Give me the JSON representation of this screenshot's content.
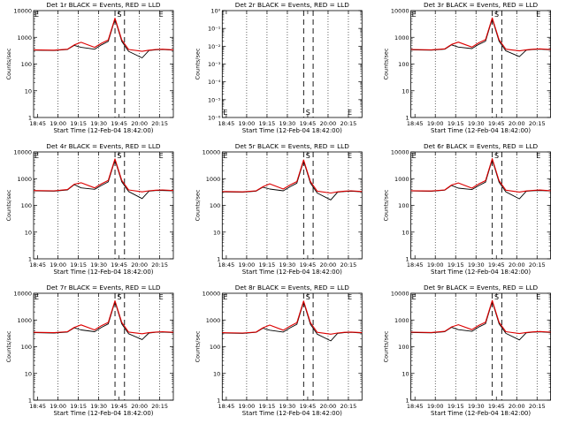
{
  "figure": {
    "title": ""
  },
  "chart_data": [
    {
      "type": "line",
      "title": "Det 1r BLACK = Events, RED = LLD",
      "xlabel": "Start Time (12-Feb-04 18:42:00)",
      "ylabel": "Counts/sec",
      "xticks": [
        "18:45",
        "19:00",
        "19:15",
        "19:30",
        "19:45",
        "20:00",
        "20:15"
      ],
      "yticks": [
        "1",
        "10",
        "100",
        "1000",
        "10000"
      ],
      "ylim": [
        1,
        10000
      ],
      "yscale": "log",
      "x_minutes_range": [
        0,
        103
      ],
      "x_minutes": [
        0,
        15,
        25,
        30,
        35,
        45,
        50,
        55,
        60,
        65,
        70,
        80,
        85,
        90,
        95,
        103
      ],
      "markers": {
        "dashed_lines_x_minutes": [
          60,
          67
        ],
        "dotted_lines_x_minutes": [
          18,
          33,
          48,
          78,
          93
        ],
        "glyphs": [
          "E",
          "S",
          "E"
        ]
      },
      "series": [
        {
          "name": "Events",
          "color": "#000000",
          "values": [
            330,
            320,
            350,
            500,
            420,
            360,
            520,
            700,
            4800,
            700,
            300,
            170,
            320,
            340,
            350,
            330
          ]
        },
        {
          "name": "LLD",
          "color": "#dd0000",
          "values": [
            340,
            330,
            360,
            520,
            650,
            420,
            600,
            800,
            5200,
            800,
            350,
            300,
            330,
            350,
            360,
            340
          ]
        }
      ]
    },
    {
      "type": "line",
      "title": "Det 2r BLACK = Events, RED = LLD",
      "xlabel": "Start Time (12-Feb-04 18:42:00)",
      "ylabel": "Counts/sec",
      "xticks": [
        "18:45",
        "19:00",
        "19:15",
        "19:30",
        "19:45",
        "20:00",
        "20:15"
      ],
      "yticks": [
        "10⁻⁶",
        "10⁻⁵",
        "10⁻⁴",
        "10⁻³",
        "10⁻²",
        "10⁻¹",
        "10⁰"
      ],
      "ylim": [
        1e-06,
        1
      ],
      "yscale": "log",
      "x_minutes_range": [
        0,
        103
      ],
      "x_minutes": [],
      "markers": {
        "dashed_lines_x_minutes": [
          60,
          67
        ],
        "dotted_lines_x_minutes": [
          18,
          33,
          48,
          78,
          93
        ],
        "glyphs": [
          "E",
          "S",
          "E"
        ]
      },
      "series": []
    },
    {
      "type": "line",
      "title": "Det 3r BLACK = Events, RED = LLD",
      "xlabel": "Start Time (12-Feb-04 18:42:00)",
      "ylabel": "Counts/sec",
      "xticks": [
        "18:45",
        "19:00",
        "19:15",
        "19:30",
        "19:45",
        "20:00",
        "20:15"
      ],
      "yticks": [
        "1",
        "10",
        "100",
        "1000",
        "10000"
      ],
      "ylim": [
        1,
        10000
      ],
      "yscale": "log",
      "x_minutes_range": [
        0,
        103
      ],
      "x_minutes": [
        0,
        15,
        25,
        30,
        35,
        45,
        50,
        55,
        60,
        65,
        70,
        80,
        85,
        90,
        95,
        103
      ],
      "markers": {
        "dashed_lines_x_minutes": [
          60,
          67
        ],
        "dotted_lines_x_minutes": [
          18,
          33,
          48,
          78,
          93
        ],
        "glyphs": [
          "E",
          "S",
          "E"
        ]
      },
      "series": [
        {
          "name": "Events",
          "color": "#000000",
          "values": [
            340,
            330,
            360,
            520,
            430,
            380,
            540,
            720,
            4900,
            720,
            310,
            190,
            330,
            350,
            360,
            340
          ]
        },
        {
          "name": "LLD",
          "color": "#dd0000",
          "values": [
            350,
            340,
            370,
            540,
            660,
            430,
            620,
            820,
            5300,
            820,
            360,
            310,
            340,
            360,
            370,
            350
          ]
        }
      ]
    },
    {
      "type": "line",
      "title": "Det 4r BLACK = Events, RED = LLD",
      "xlabel": "Start Time (12-Feb-04 18:42:00)",
      "ylabel": "Counts/sec",
      "xticks": [
        "18:45",
        "19:00",
        "19:15",
        "19:30",
        "19:45",
        "20:00",
        "20:15"
      ],
      "yticks": [
        "1",
        "10",
        "100",
        "1000",
        "10000"
      ],
      "ylim": [
        1,
        10000
      ],
      "yscale": "log",
      "x_minutes_range": [
        0,
        103
      ],
      "x_minutes": [
        0,
        15,
        25,
        30,
        35,
        45,
        50,
        55,
        60,
        65,
        70,
        80,
        85,
        90,
        95,
        103
      ],
      "markers": {
        "dashed_lines_x_minutes": [
          60,
          67
        ],
        "dotted_lines_x_minutes": [
          18,
          33,
          48,
          78,
          93
        ],
        "glyphs": [
          "E",
          "S",
          "E"
        ]
      },
      "series": [
        {
          "name": "Events",
          "color": "#000000",
          "values": [
            350,
            340,
            380,
            600,
            450,
            400,
            560,
            760,
            5000,
            760,
            330,
            180,
            340,
            360,
            360,
            350
          ]
        },
        {
          "name": "LLD",
          "color": "#dd0000",
          "values": [
            360,
            350,
            390,
            620,
            700,
            450,
            640,
            860,
            5500,
            860,
            380,
            320,
            350,
            370,
            380,
            360
          ]
        }
      ]
    },
    {
      "type": "line",
      "title": "Det 5r BLACK = Events, RED = LLD",
      "xlabel": "Start Time (12-Feb-04 18:42:00)",
      "ylabel": "Counts/sec",
      "xticks": [
        "18:45",
        "19:00",
        "19:15",
        "19:30",
        "19:45",
        "20:00",
        "20:15"
      ],
      "yticks": [
        "1",
        "10",
        "100",
        "1000",
        "10000"
      ],
      "ylim": [
        1,
        10000
      ],
      "yscale": "log",
      "x_minutes_range": [
        0,
        103
      ],
      "x_minutes": [
        0,
        15,
        25,
        30,
        35,
        45,
        50,
        55,
        60,
        65,
        70,
        80,
        85,
        90,
        95,
        103
      ],
      "markers": {
        "dashed_lines_x_minutes": [
          60,
          67
        ],
        "dotted_lines_x_minutes": [
          18,
          33,
          48,
          78,
          93
        ],
        "glyphs": [
          "E",
          "S",
          "E"
        ]
      },
      "series": [
        {
          "name": "Events",
          "color": "#000000",
          "values": [
            320,
            310,
            340,
            480,
            410,
            350,
            500,
            680,
            4600,
            680,
            290,
            160,
            310,
            330,
            340,
            320
          ]
        },
        {
          "name": "LLD",
          "color": "#dd0000",
          "values": [
            330,
            320,
            350,
            500,
            640,
            410,
            580,
            780,
            5000,
            780,
            340,
            290,
            320,
            340,
            350,
            330
          ]
        }
      ]
    },
    {
      "type": "line",
      "title": "Det 6r BLACK = Events, RED = LLD",
      "xlabel": "Start Time (12-Feb-04 18:42:00)",
      "ylabel": "Counts/sec",
      "xticks": [
        "18:45",
        "19:00",
        "19:15",
        "19:30",
        "19:45",
        "20:00",
        "20:15"
      ],
      "yticks": [
        "1",
        "10",
        "100",
        "1000",
        "10000"
      ],
      "ylim": [
        1,
        10000
      ],
      "yscale": "log",
      "x_minutes_range": [
        0,
        103
      ],
      "x_minutes": [
        0,
        15,
        25,
        30,
        35,
        45,
        50,
        55,
        60,
        65,
        70,
        80,
        85,
        90,
        95,
        103
      ],
      "markers": {
        "dashed_lines_x_minutes": [
          60,
          67
        ],
        "dotted_lines_x_minutes": [
          18,
          33,
          48,
          78,
          93
        ],
        "glyphs": [
          "E",
          "S",
          "E"
        ]
      },
      "series": [
        {
          "name": "Events",
          "color": "#000000",
          "values": [
            345,
            335,
            370,
            560,
            440,
            390,
            550,
            740,
            5100,
            740,
            320,
            175,
            335,
            355,
            360,
            345
          ]
        },
        {
          "name": "LLD",
          "color": "#dd0000",
          "values": [
            355,
            345,
            380,
            580,
            690,
            440,
            630,
            840,
            5600,
            840,
            370,
            315,
            345,
            365,
            375,
            355
          ]
        }
      ]
    },
    {
      "type": "line",
      "title": "Det 7r BLACK = Events, RED = LLD",
      "xlabel": "Start Time (12-Feb-04 18:42:00)",
      "ylabel": "Counts/sec",
      "xticks": [
        "18:45",
        "19:00",
        "19:15",
        "19:30",
        "19:45",
        "20:00",
        "20:15"
      ],
      "yticks": [
        "1",
        "10",
        "100",
        "1000",
        "10000"
      ],
      "ylim": [
        1,
        10000
      ],
      "yscale": "log",
      "x_minutes_range": [
        0,
        103
      ],
      "x_minutes": [
        0,
        15,
        25,
        30,
        35,
        45,
        50,
        55,
        60,
        65,
        70,
        80,
        85,
        90,
        95,
        103
      ],
      "markers": {
        "dashed_lines_x_minutes": [
          60,
          67
        ],
        "dotted_lines_x_minutes": [
          18,
          33,
          48,
          78,
          93
        ],
        "glyphs": [
          "E",
          "S",
          "E"
        ]
      },
      "series": [
        {
          "name": "Events",
          "color": "#000000",
          "values": [
            335,
            325,
            355,
            510,
            425,
            365,
            530,
            710,
            4850,
            710,
            305,
            185,
            325,
            345,
            355,
            335
          ]
        },
        {
          "name": "LLD",
          "color": "#dd0000",
          "values": [
            345,
            335,
            365,
            530,
            655,
            425,
            610,
            810,
            5250,
            810,
            355,
            305,
            335,
            355,
            365,
            345
          ]
        }
      ]
    },
    {
      "type": "line",
      "title": "Det 8r BLACK = Events, RED = LLD",
      "xlabel": "Start Time (12-Feb-04 18:42:00)",
      "ylabel": "Counts/sec",
      "xticks": [
        "18:45",
        "19:00",
        "19:15",
        "19:30",
        "19:45",
        "20:00",
        "20:15"
      ],
      "yticks": [
        "1",
        "10",
        "100",
        "1000",
        "10000"
      ],
      "ylim": [
        1,
        10000
      ],
      "yscale": "log",
      "x_minutes_range": [
        0,
        103
      ],
      "x_minutes": [
        0,
        15,
        25,
        30,
        35,
        45,
        50,
        55,
        60,
        65,
        70,
        80,
        85,
        90,
        95,
        103
      ],
      "markers": {
        "dashed_lines_x_minutes": [
          60,
          67
        ],
        "dotted_lines_x_minutes": [
          18,
          33,
          48,
          78,
          93
        ],
        "glyphs": [
          "E",
          "S",
          "E"
        ]
      },
      "series": [
        {
          "name": "Events",
          "color": "#000000",
          "values": [
            325,
            315,
            345,
            490,
            415,
            355,
            510,
            690,
            4700,
            690,
            295,
            165,
            315,
            335,
            345,
            325
          ]
        },
        {
          "name": "LLD",
          "color": "#dd0000",
          "values": [
            335,
            325,
            355,
            510,
            645,
            415,
            590,
            790,
            5100,
            790,
            345,
            295,
            325,
            345,
            355,
            335
          ]
        }
      ]
    },
    {
      "type": "line",
      "title": "Det 9r BLACK = Events, RED = LLD",
      "xlabel": "Start Time (12-Feb-04 18:42:00)",
      "ylabel": "Counts/sec",
      "xticks": [
        "18:45",
        "19:00",
        "19:15",
        "19:30",
        "19:45",
        "20:00",
        "20:15"
      ],
      "yticks": [
        "1",
        "10",
        "100",
        "1000",
        "10000"
      ],
      "ylim": [
        1,
        10000
      ],
      "yscale": "log",
      "x_minutes_range": [
        0,
        103
      ],
      "x_minutes": [
        0,
        15,
        25,
        30,
        35,
        45,
        50,
        55,
        60,
        65,
        70,
        80,
        85,
        90,
        95,
        103
      ],
      "markers": {
        "dashed_lines_x_minutes": [
          60,
          67
        ],
        "dotted_lines_x_minutes": [
          18,
          33,
          48,
          78,
          93
        ],
        "glyphs": [
          "E",
          "S",
          "E"
        ]
      },
      "series": [
        {
          "name": "Events",
          "color": "#000000",
          "values": [
            340,
            330,
            365,
            530,
            435,
            375,
            545,
            725,
            4950,
            725,
            315,
            180,
            330,
            350,
            360,
            340
          ]
        },
        {
          "name": "LLD",
          "color": "#dd0000",
          "values": [
            350,
            340,
            375,
            550,
            665,
            435,
            625,
            825,
            5350,
            825,
            365,
            310,
            340,
            360,
            370,
            350
          ]
        }
      ]
    }
  ]
}
